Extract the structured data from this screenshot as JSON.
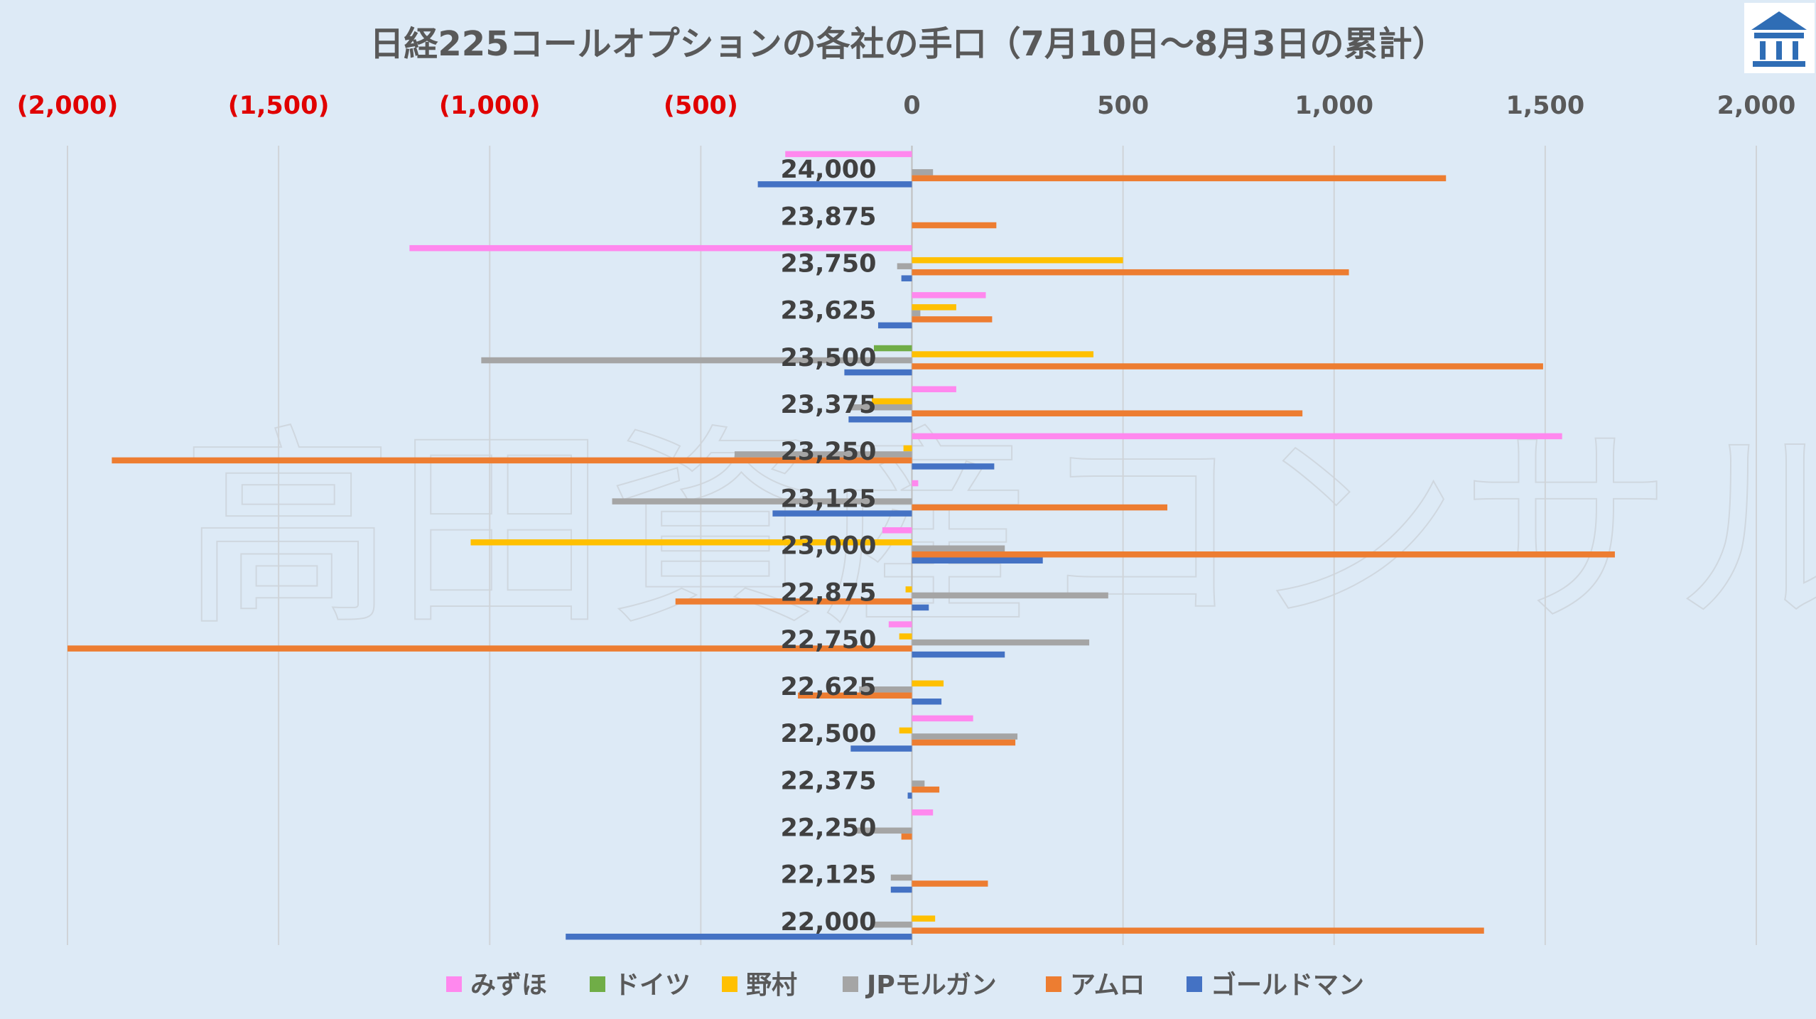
{
  "logo": {
    "icon": "bank-building-icon",
    "color": "#2f6db5"
  },
  "watermark_text": "高田資産コンサル",
  "chart_data": {
    "type": "bar",
    "orientation": "horizontal",
    "title": "日経225コールオプションの各社の手口（7月10日～8月3日の累計）",
    "xlim": [
      -2000,
      2000
    ],
    "x_ticks": [
      -2000,
      -1500,
      -1000,
      -500,
      0,
      500,
      1000,
      1500,
      2000
    ],
    "x_tick_labels": [
      "(2,000)",
      "(1,500)",
      "(1,000)",
      "(500)",
      "0",
      "500",
      "1,000",
      "1,500",
      "2,000"
    ],
    "negative_tick_color": "#e00000",
    "grid": "vertical",
    "legend_position": "bottom",
    "categories": [
      "24,000",
      "23,875",
      "23,750",
      "23,625",
      "23,500",
      "23,375",
      "23,250",
      "23,125",
      "23,000",
      "22,875",
      "22,750",
      "22,625",
      "22,500",
      "22,375",
      "22,250",
      "22,125",
      "22,000"
    ],
    "series": [
      {
        "name": "みずほ",
        "color": "#ff88ee",
        "values": [
          -300,
          0,
          -1190,
          175,
          0,
          105,
          1540,
          15,
          -70,
          0,
          -55,
          0,
          145,
          0,
          50,
          0,
          0
        ]
      },
      {
        "name": "ドイツ",
        "color": "#70ad47",
        "values": [
          0,
          0,
          0,
          0,
          -90,
          0,
          0,
          0,
          0,
          0,
          0,
          0,
          0,
          0,
          0,
          0,
          0
        ]
      },
      {
        "name": "野村",
        "color": "#ffc000",
        "values": [
          0,
          0,
          500,
          105,
          430,
          -95,
          -20,
          0,
          -1045,
          -15,
          -30,
          75,
          -30,
          0,
          0,
          0,
          55
        ]
      },
      {
        "name": "JPモルガン",
        "color": "#a5a5a5",
        "values": [
          50,
          0,
          -35,
          20,
          -1020,
          -150,
          -420,
          -710,
          220,
          465,
          420,
          -125,
          250,
          30,
          -140,
          -50,
          -95
        ]
      },
      {
        "name": "アムロ",
        "color": "#ed7d31",
        "values": [
          1265,
          200,
          1035,
          190,
          1495,
          925,
          -1895,
          605,
          1665,
          -560,
          -2000,
          -270,
          245,
          65,
          -25,
          180,
          1355
        ]
      },
      {
        "name": "ゴールドマン",
        "color": "#4472c4",
        "values": [
          -365,
          0,
          -25,
          -80,
          -160,
          -150,
          195,
          -330,
          310,
          40,
          220,
          70,
          -145,
          -10,
          0,
          -50,
          -820
        ]
      }
    ]
  }
}
